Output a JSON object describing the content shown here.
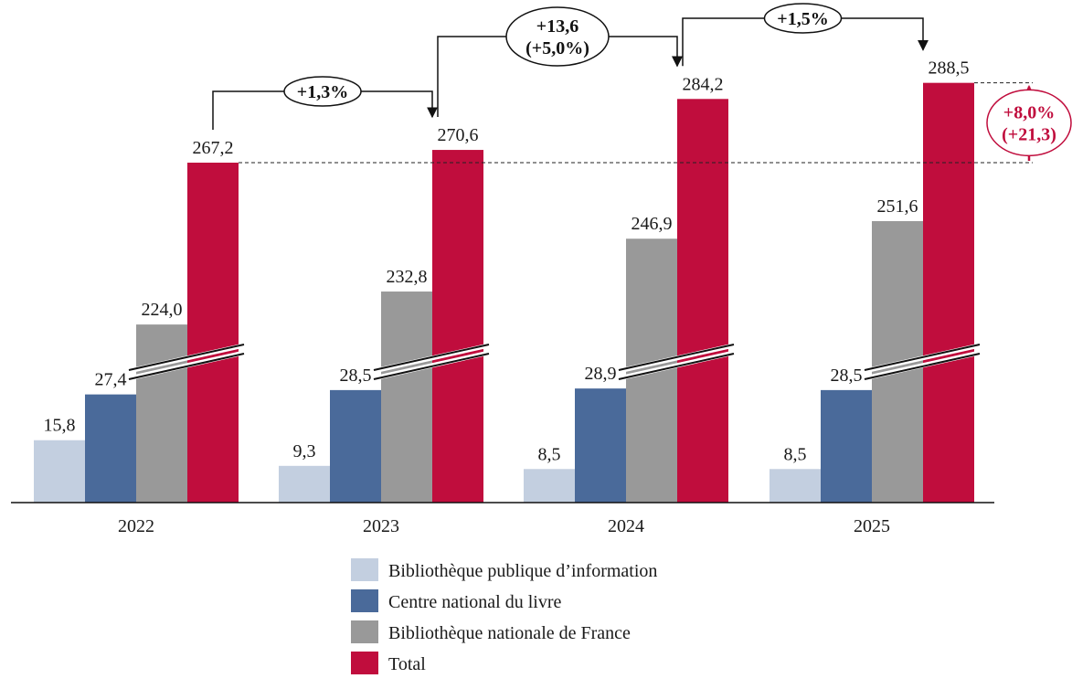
{
  "chart_data": {
    "type": "bar",
    "categories": [
      "2022",
      "2023",
      "2024",
      "2025"
    ],
    "series": [
      {
        "name": "Bibliothèque publique d’information",
        "values": [
          15.8,
          9.3,
          8.5,
          8.5
        ],
        "labels": [
          "15,8",
          "9,3",
          "8,5",
          "8,5"
        ],
        "color": "#c3cfe0"
      },
      {
        "name": "Centre national du livre",
        "values": [
          27.4,
          28.5,
          28.9,
          28.5
        ],
        "labels": [
          "27,4",
          "28,5",
          "28,9",
          "28,5"
        ],
        "color": "#4a6a9a"
      },
      {
        "name": "Bibliothèque nationale de France",
        "values": [
          224.0,
          232.8,
          246.9,
          251.6
        ],
        "labels": [
          "224,0",
          "232,8",
          "246,9",
          "251,6"
        ],
        "color": "#999999"
      },
      {
        "name": "Total",
        "values": [
          267.2,
          270.6,
          284.2,
          288.5
        ],
        "labels": [
          "267,2",
          "270,6",
          "284,2",
          "288,5"
        ],
        "color": "#c00d3d"
      }
    ],
    "axis_break": true,
    "legend_position": "bottom",
    "grid": false,
    "annotations": [
      {
        "from": "2022",
        "to": "2023",
        "lines": [
          "+1,3%"
        ]
      },
      {
        "from": "2023",
        "to": "2024",
        "lines": [
          "+13,6",
          "(+5,0%)"
        ]
      },
      {
        "from": "2024",
        "to": "2025",
        "lines": [
          "+1,5%"
        ]
      },
      {
        "from": "2022",
        "to": "2025",
        "lines": [
          "+8,0%",
          "(+21,3)"
        ],
        "color": "#c00d3d"
      }
    ]
  }
}
